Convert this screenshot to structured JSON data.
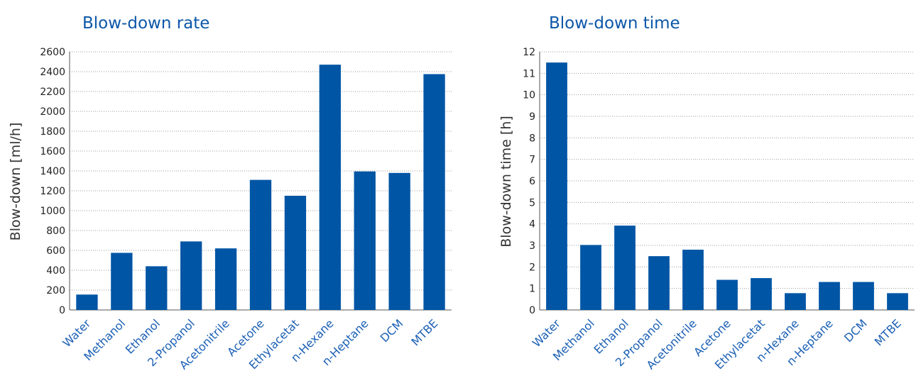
{
  "chart_data": [
    {
      "type": "bar",
      "title": "Blow-down rate",
      "xlabel": "",
      "ylabel": "Blow-down [ml/h]",
      "categories": [
        "Water",
        "Methanol",
        "Ethanol",
        "2-Propanol",
        "Acetonitrile",
        "Acetone",
        "Ethylacetat",
        "n-Hexane",
        "n-Heptane",
        "DCM",
        "MTBE"
      ],
      "values": [
        155,
        575,
        440,
        690,
        620,
        1310,
        1150,
        2470,
        1395,
        1380,
        2375
      ],
      "ylim": [
        0,
        2600
      ],
      "yticks": [
        0,
        200,
        400,
        600,
        800,
        1000,
        1200,
        1400,
        1600,
        1800,
        2000,
        2200,
        2400,
        2600
      ],
      "grid": true,
      "bar_color": "#0055a5"
    },
    {
      "type": "bar",
      "title": "Blow-down time",
      "xlabel": "",
      "ylabel": "Blow-down time [h]",
      "categories": [
        "Water",
        "Methanol",
        "Ethanol",
        "2-Propanol",
        "Acetonitrile",
        "Acetone",
        "Ethylacetat",
        "n-Hexane",
        "n-Heptane",
        "DCM",
        "MTBE"
      ],
      "values": [
        11.5,
        3.02,
        3.92,
        2.5,
        2.8,
        1.4,
        1.48,
        0.78,
        1.3,
        1.3,
        0.78
      ],
      "ylim": [
        0,
        12
      ],
      "yticks": [
        0,
        1,
        2,
        3,
        4,
        5,
        6,
        7,
        8,
        9,
        10,
        11,
        12
      ],
      "grid": true,
      "bar_color": "#0055a5"
    }
  ]
}
